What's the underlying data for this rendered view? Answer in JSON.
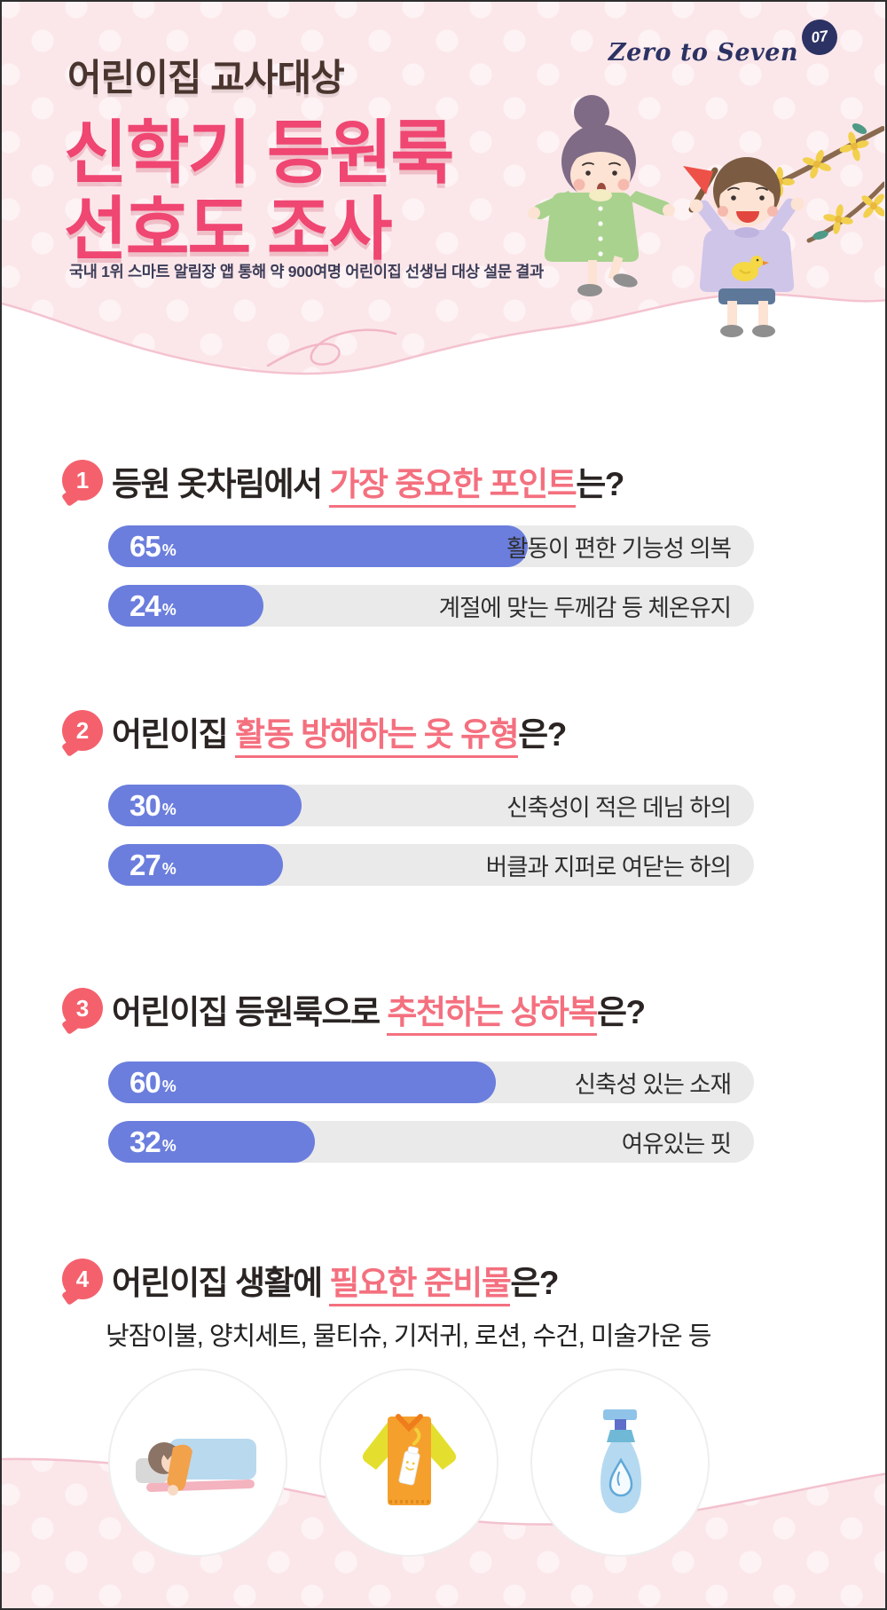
{
  "ui": {
    "percent_sign": "%"
  },
  "colors": {
    "header_bg": "#fbe7ea",
    "title_pink": "#ef4672",
    "highlight_pink": "#f4707f",
    "badge_pink": "#f4616d",
    "bar_blue": "#6b7edd",
    "bar_track": "#eaeaea",
    "logo_navy": "#2c3263",
    "eyebrow_brown": "#4a342e"
  },
  "logo": {
    "text": "Zero to Seven",
    "badge": "07"
  },
  "header": {
    "eyebrow": "어린이집 교사대상",
    "title_line1": "신학기 등원룩",
    "title_line2": "선호도 조사",
    "subtitle": "국내 1위 스마트 알림장 앱 통해 약 900여명 어린이집 선생님 대상 설문 결과"
  },
  "questions": [
    {
      "number": "1",
      "pre": "등원 옷차림에서 ",
      "highlight": "가장 중요한 포인트",
      "post": "는?",
      "bars": [
        {
          "value": 65,
          "label": "활동이 편한 기능성 의복"
        },
        {
          "value": 24,
          "label": "계절에 맞는 두께감 등 체온유지"
        }
      ]
    },
    {
      "number": "2",
      "pre": "어린이집 ",
      "highlight": "활동 방해하는 옷 유형",
      "post": "은?",
      "bars": [
        {
          "value": 30,
          "label": "신축성이 적은 데님 하의"
        },
        {
          "value": 27,
          "label": "버클과 지퍼로 여닫는 하의"
        }
      ]
    },
    {
      "number": "3",
      "pre": "어린이집 등원룩으로 ",
      "highlight": "추천하는 상하복",
      "post": "은?",
      "bars": [
        {
          "value": 60,
          "label": "신축성 있는 소재"
        },
        {
          "value": 32,
          "label": "여유있는 핏"
        }
      ]
    },
    {
      "number": "4",
      "pre": "어린이집 생활에 ",
      "highlight": "필요한 준비물",
      "post": "은?",
      "items_text": "낮잠이불, 양치세트, 물티슈, 기저귀, 로션, 수건, 미술가운 등"
    }
  ],
  "footer_icons": [
    "sleeping-child-icon",
    "shirt-lotion-icon",
    "pump-bottle-icon"
  ],
  "chart_data": [
    {
      "type": "bar",
      "title": "등원 옷차림에서 가장 중요한 포인트는?",
      "categories": [
        "활동이 편한 기능성 의복",
        "계절에 맞는 두께감 등 체온유지"
      ],
      "values": [
        65,
        24
      ],
      "unit": "%",
      "xlim": [
        0,
        100
      ],
      "orientation": "horizontal"
    },
    {
      "type": "bar",
      "title": "어린이집 활동 방해하는 옷 유형은?",
      "categories": [
        "신축성이 적은 데님 하의",
        "버클과 지퍼로 여닫는 하의"
      ],
      "values": [
        30,
        27
      ],
      "unit": "%",
      "xlim": [
        0,
        100
      ],
      "orientation": "horizontal"
    },
    {
      "type": "bar",
      "title": "어린이집 등원룩으로 추천하는 상하복은?",
      "categories": [
        "신축성 있는 소재",
        "여유있는 핏"
      ],
      "values": [
        60,
        32
      ],
      "unit": "%",
      "xlim": [
        0,
        100
      ],
      "orientation": "horizontal"
    },
    {
      "type": "table",
      "title": "어린이집 생활에 필요한 준비물은?",
      "categories": [
        "낮잠이불",
        "양치세트",
        "물티슈",
        "기저귀",
        "로션",
        "수건",
        "미술가운"
      ],
      "values": []
    }
  ]
}
